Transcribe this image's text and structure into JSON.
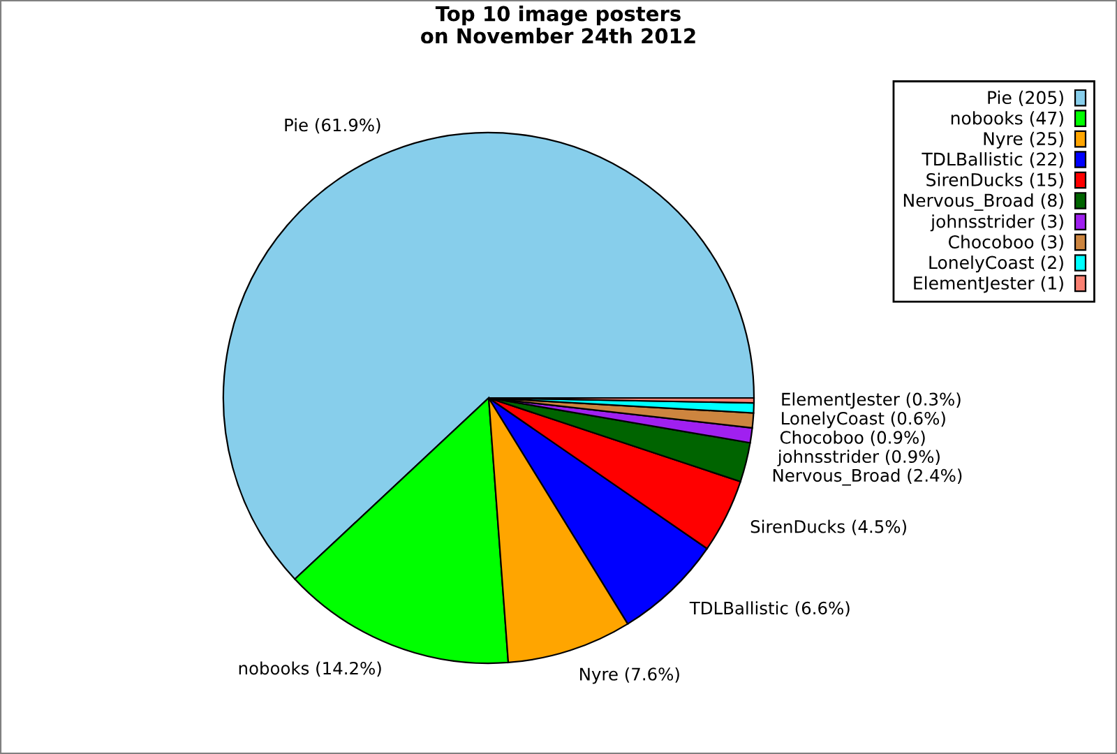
{
  "chart_data": {
    "type": "pie",
    "title": "Top 10 image posters\non November 24th 2012",
    "categories": [
      "Pie (205)",
      "nobooks (47)",
      "Nyre (25)",
      "TDLBallistic (22)",
      "SirenDucks (15)",
      "Nervous_Broad (8)",
      "johnsstrider (3)",
      "Chocoboo (3)",
      "LonelyCoast (2)",
      "ElementJester (1)"
    ],
    "values": [
      61.9,
      14.2,
      7.6,
      6.6,
      4.5,
      2.4,
      0.9,
      0.9,
      0.6,
      0.3
    ],
    "colors": [
      "#87ceeb",
      "#00ff00",
      "#ffa500",
      "#0000ff",
      "#ff0000",
      "#006400",
      "#a020f0",
      "#cd853f",
      "#00ffff",
      "#fa8072"
    ],
    "value_labels": [
      "Pie (61.9%)",
      "nobooks (14.2%)",
      "Nyre (7.6%)",
      "TDLBallistic (6.6%)",
      "SirenDucks (4.5%)",
      "Nervous_Broad (2.4%)",
      "johnsstrider (0.9%)",
      "Chocoboo (0.9%)",
      "LonelyCoast (0.6%)",
      "ElementJester (0.3%)"
    ],
    "legend": "top right"
  }
}
